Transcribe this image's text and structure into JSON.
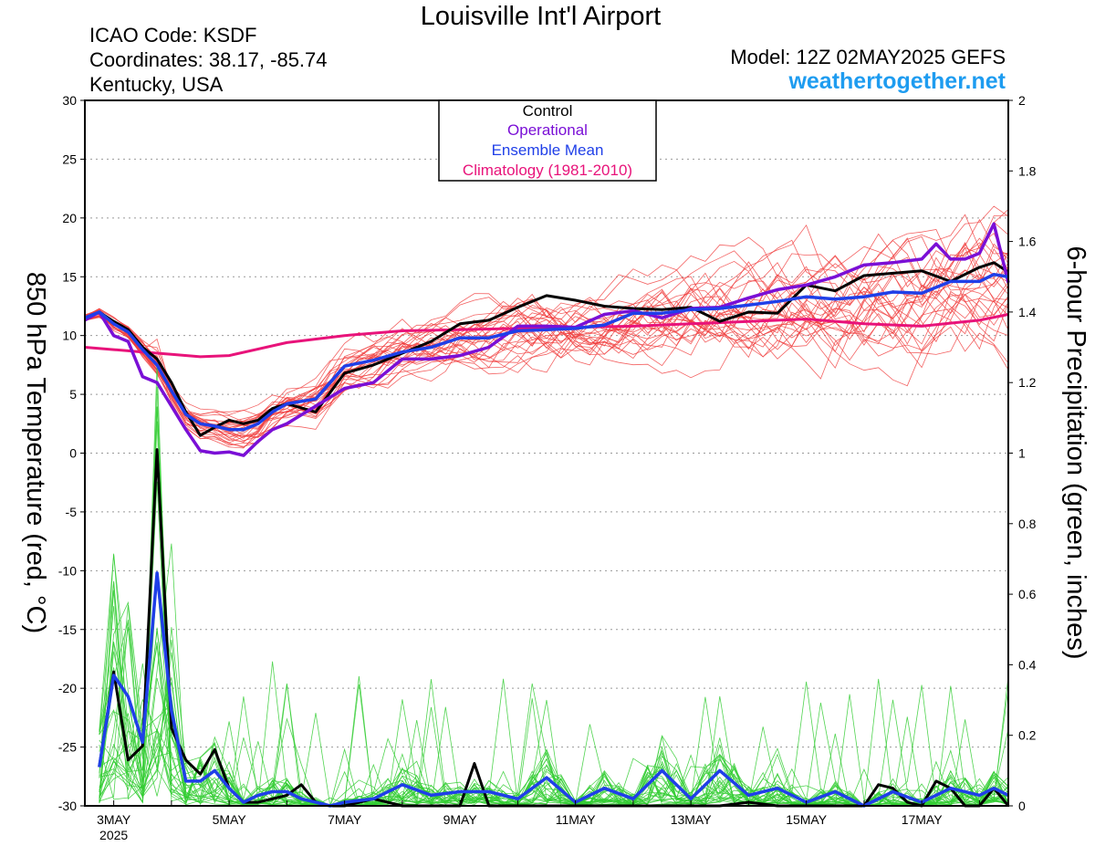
{
  "header": {
    "title": "Louisville Int'l Airport",
    "icao": "ICAO Code: KSDF",
    "coordinates": "Coordinates: 38.17, -85.74",
    "region": "Kentucky, USA",
    "model": "Model: 12Z 02MAY2025 GEFS",
    "site": "weathertogether.net"
  },
  "colors": {
    "control": "#000000",
    "operational": "#7a0fd6",
    "mean": "#1f3fe8",
    "climatology": "#e8137a",
    "temp_members": "#f03c3c",
    "precip_members": "#33cc33",
    "site": "#1e9cf0"
  },
  "chart_data": {
    "type": "line",
    "xlabel": "",
    "ylabel": "850 hPa Temperature (red, °C)",
    "y2label": "6-hour Precipitation (green, inches)",
    "ylim": [
      -30,
      30
    ],
    "y2lim": [
      0,
      2
    ],
    "yticks": [
      30,
      25,
      20,
      15,
      10,
      5,
      0,
      -5,
      -10,
      -15,
      -20,
      -25,
      -30
    ],
    "y2ticks": [
      2,
      1.8,
      1.6,
      1.4,
      1.2,
      1,
      0.8,
      0.6,
      0.4,
      0.2,
      0
    ],
    "grid": true,
    "legend": [
      "Control",
      "Operational",
      "Ensemble Mean",
      "Climatology (1981-2010)"
    ],
    "legend_position": "top-center",
    "x_tick_labels": [
      "3MAY",
      "5MAY",
      "7MAY",
      "9MAY",
      "11MAY",
      "13MAY",
      "15MAY",
      "17MAY"
    ],
    "x_tick_days": [
      3,
      5,
      7,
      9,
      11,
      13,
      15,
      17
    ],
    "x_sublabel": "2025",
    "x_start_day": 2.5,
    "x_end_day": 18.5,
    "series": [
      {
        "name": "Control",
        "axis": "temp",
        "x": [
          2.5,
          2.75,
          3.0,
          3.25,
          3.5,
          3.75,
          4.0,
          4.25,
          4.5,
          4.75,
          5.0,
          5.25,
          5.5,
          5.75,
          6.0,
          6.5,
          7.0,
          7.5,
          8.0,
          8.5,
          9.0,
          9.5,
          10.0,
          10.5,
          11.0,
          11.5,
          12.0,
          12.5,
          13.0,
          13.5,
          14.0,
          14.5,
          15.0,
          15.5,
          16.0,
          16.5,
          17.0,
          17.5,
          18.0,
          18.25,
          18.5
        ],
        "values": [
          11.3,
          12.0,
          11.2,
          10.5,
          9.0,
          8.0,
          6.0,
          3.5,
          1.5,
          2.2,
          2.8,
          2.5,
          2.8,
          3.8,
          4.2,
          3.5,
          6.8,
          7.5,
          8.5,
          9.5,
          11.0,
          11.3,
          12.4,
          13.4,
          13.0,
          12.5,
          12.3,
          12.2,
          12.4,
          11.2,
          12.0,
          11.9,
          14.3,
          13.8,
          15.1,
          15.3,
          15.5,
          14.6,
          15.8,
          16.2,
          15.4
        ]
      },
      {
        "name": "Operational",
        "axis": "temp",
        "x": [
          2.5,
          2.75,
          3.0,
          3.25,
          3.5,
          3.75,
          4.0,
          4.25,
          4.5,
          4.75,
          5.0,
          5.25,
          5.5,
          5.75,
          6.0,
          6.5,
          7.0,
          7.5,
          8.0,
          8.5,
          9.0,
          9.5,
          10.0,
          10.5,
          11.0,
          11.5,
          12.0,
          12.5,
          13.0,
          13.5,
          14.0,
          14.5,
          15.0,
          15.5,
          16.0,
          16.5,
          17.0,
          17.25,
          17.5,
          17.75,
          18.0,
          18.25,
          18.5
        ],
        "values": [
          11.3,
          12.0,
          10.0,
          9.5,
          6.5,
          6.0,
          4.0,
          2.0,
          0.2,
          0.0,
          0.1,
          -0.2,
          1.0,
          2.0,
          2.5,
          4.0,
          5.5,
          6.0,
          8.0,
          8.0,
          8.3,
          9.0,
          10.8,
          10.8,
          10.7,
          11.8,
          12.1,
          11.5,
          12.3,
          12.4,
          13.2,
          13.9,
          14.3,
          15.0,
          16.0,
          16.2,
          16.5,
          17.8,
          16.5,
          16.5,
          17.0,
          19.5,
          14.5
        ]
      },
      {
        "name": "Ensemble Mean",
        "axis": "temp",
        "x": [
          2.5,
          2.75,
          3.0,
          3.25,
          3.5,
          3.75,
          4.0,
          4.25,
          4.5,
          4.75,
          5.0,
          5.25,
          5.5,
          5.75,
          6.0,
          6.5,
          7.0,
          7.5,
          8.0,
          8.5,
          9.0,
          9.5,
          10.0,
          10.5,
          11.0,
          11.5,
          12.0,
          12.5,
          13.0,
          13.5,
          14.0,
          14.5,
          15.0,
          15.5,
          16.0,
          16.5,
          17.0,
          17.5,
          18.0,
          18.25,
          18.5
        ],
        "values": [
          11.5,
          12.0,
          11.0,
          10.3,
          8.8,
          7.5,
          5.3,
          3.3,
          2.5,
          2.3,
          2.0,
          2.0,
          2.5,
          3.5,
          4.2,
          4.6,
          7.4,
          7.9,
          8.6,
          9.0,
          9.8,
          9.8,
          10.4,
          10.5,
          10.6,
          10.9,
          11.9,
          11.9,
          12.2,
          12.3,
          12.6,
          12.9,
          13.3,
          13.1,
          13.3,
          13.7,
          13.6,
          14.6,
          14.6,
          15.2,
          15.0
        ]
      },
      {
        "name": "Climatology (1981-2010)",
        "axis": "temp",
        "x": [
          2.5,
          3.0,
          3.5,
          4.0,
          4.5,
          5.0,
          6.0,
          7.0,
          8.0,
          9.0,
          10.0,
          11.0,
          12.0,
          13.0,
          14.0,
          15.0,
          16.0,
          17.0,
          18.0,
          18.5
        ],
        "values": [
          9.0,
          8.8,
          8.6,
          8.4,
          8.2,
          8.3,
          9.4,
          10.0,
          10.4,
          10.5,
          10.6,
          10.7,
          10.8,
          11.0,
          11.2,
          11.4,
          11.0,
          10.8,
          11.3,
          11.8
        ]
      },
      {
        "name": "Control",
        "axis": "precip",
        "x": [
          2.75,
          3.0,
          3.25,
          3.5,
          3.75,
          4.0,
          4.25,
          4.5,
          4.75,
          5.0,
          5.25,
          5.5,
          5.75,
          6.0,
          6.25,
          6.5,
          6.75,
          7.0,
          7.5,
          8.0,
          8.5,
          9.0,
          9.25,
          9.5,
          10.0,
          10.5,
          11.0,
          11.5,
          12.0,
          12.5,
          13.0,
          13.5,
          14.0,
          14.5,
          15.0,
          15.5,
          16.0,
          16.25,
          16.5,
          16.75,
          17.0,
          17.25,
          17.5,
          17.75,
          18.0,
          18.25,
          18.5
        ],
        "values": [
          0.11,
          0.38,
          0.13,
          0.17,
          1.01,
          0.22,
          0.13,
          0.09,
          0.16,
          0.05,
          0.01,
          0.01,
          0.02,
          0.03,
          0.06,
          0.01,
          0.0,
          0.0,
          0.02,
          0.0,
          0.0,
          0.0,
          0.12,
          0.0,
          0.0,
          0.0,
          0.0,
          0.0,
          0.0,
          0.0,
          0.0,
          0.0,
          0.01,
          0.0,
          0.0,
          0.0,
          0.0,
          0.06,
          0.05,
          0.01,
          0.0,
          0.07,
          0.05,
          0.0,
          0.0,
          0.05,
          0.0
        ]
      },
      {
        "name": "Ensemble Mean",
        "axis": "precip",
        "x": [
          2.75,
          3.0,
          3.25,
          3.5,
          3.75,
          4.0,
          4.25,
          4.5,
          4.75,
          5.0,
          5.25,
          5.5,
          5.75,
          6.0,
          6.25,
          6.5,
          6.75,
          7.0,
          7.5,
          8.0,
          8.5,
          9.0,
          9.5,
          10.0,
          10.5,
          11.0,
          11.5,
          12.0,
          12.5,
          13.0,
          13.5,
          14.0,
          14.5,
          15.0,
          15.5,
          16.0,
          16.5,
          17.0,
          17.5,
          18.0,
          18.25,
          18.5
        ],
        "values": [
          0.11,
          0.37,
          0.31,
          0.18,
          0.66,
          0.27,
          0.07,
          0.07,
          0.1,
          0.05,
          0.01,
          0.03,
          0.04,
          0.04,
          0.02,
          0.01,
          0.0,
          0.01,
          0.02,
          0.06,
          0.03,
          0.04,
          0.04,
          0.02,
          0.08,
          0.01,
          0.05,
          0.02,
          0.1,
          0.02,
          0.1,
          0.03,
          0.05,
          0.01,
          0.04,
          0.0,
          0.04,
          0.01,
          0.05,
          0.03,
          0.05,
          0.03
        ]
      }
    ],
    "member_envelope": {
      "temp_members": 30,
      "precip_members": 30
    }
  }
}
